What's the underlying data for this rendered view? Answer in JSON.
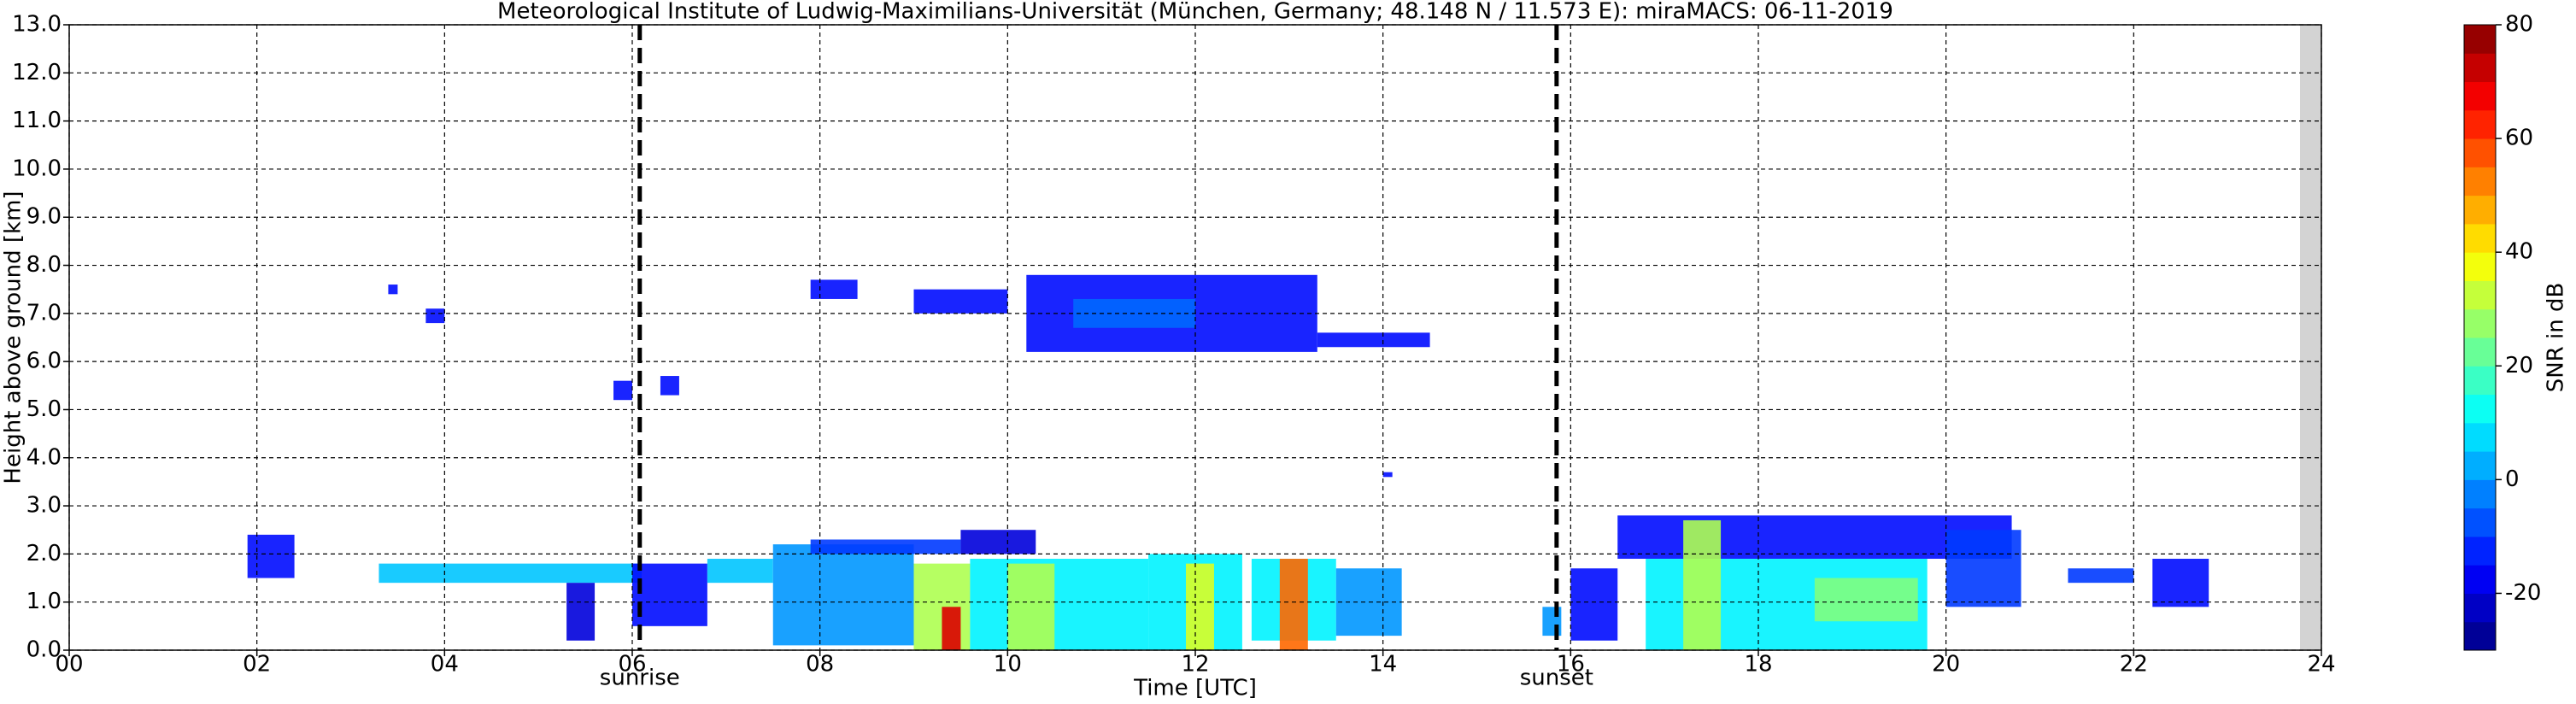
{
  "chart_data": {
    "type": "time-height",
    "title": "Meteorological Institute of Ludwig-Maximilians-Universität (München, Germany; 48.148 N / 11.573 E):    miraMACS: 06-11-2019",
    "x_label": "Time [UTC]",
    "y_label": "Height above ground [km]",
    "colorbar_label": "SNR in dB",
    "xlim": [
      0,
      24
    ],
    "xticks": [
      {
        "value": 0,
        "label": "00"
      },
      {
        "value": 2,
        "label": "02"
      },
      {
        "value": 4,
        "label": "04"
      },
      {
        "value": 6,
        "label": "06"
      },
      {
        "value": 8,
        "label": "08"
      },
      {
        "value": 10,
        "label": "10"
      },
      {
        "value": 12,
        "label": "12"
      },
      {
        "value": 14,
        "label": "14"
      },
      {
        "value": 16,
        "label": "16"
      },
      {
        "value": 18,
        "label": "18"
      },
      {
        "value": 20,
        "label": "20"
      },
      {
        "value": 22,
        "label": "22"
      },
      {
        "value": 24,
        "label": "24"
      }
    ],
    "ylim": [
      0,
      13
    ],
    "yticks": [
      {
        "value": 0,
        "label": "0.0"
      },
      {
        "value": 1,
        "label": "1.0"
      },
      {
        "value": 2,
        "label": "2.0"
      },
      {
        "value": 3,
        "label": "3.0"
      },
      {
        "value": 4,
        "label": "4.0"
      },
      {
        "value": 5,
        "label": "5.0"
      },
      {
        "value": 6,
        "label": "6.0"
      },
      {
        "value": 7,
        "label": "7.0"
      },
      {
        "value": 8,
        "label": "8.0"
      },
      {
        "value": 9,
        "label": "9.0"
      },
      {
        "value": 10,
        "label": "10.0"
      },
      {
        "value": 11,
        "label": "11.0"
      },
      {
        "value": 12,
        "label": "12.0"
      },
      {
        "value": 13,
        "label": "13.0"
      }
    ],
    "grid": true,
    "colormap": "jet",
    "clim": [
      -30,
      80
    ],
    "cticks": [
      -20,
      0,
      20,
      40,
      60,
      80
    ],
    "events": [
      {
        "label": "sunrise",
        "time": 6.08
      },
      {
        "label": "sunset",
        "time": 15.85
      }
    ],
    "echoes": [
      {
        "x": [
          1.9,
          2.4
        ],
        "y": [
          1.5,
          2.4
        ],
        "snr": -15
      },
      {
        "x": [
          3.4,
          3.5
        ],
        "y": [
          7.4,
          7.6
        ],
        "snr": -15
      },
      {
        "x": [
          3.8,
          4.0
        ],
        "y": [
          6.8,
          7.1
        ],
        "snr": -15
      },
      {
        "x": [
          5.8,
          6.0
        ],
        "y": [
          5.2,
          5.6
        ],
        "snr": -15
      },
      {
        "x": [
          6.3,
          6.5
        ],
        "y": [
          5.3,
          5.7
        ],
        "snr": -15
      },
      {
        "x": [
          3.3,
          6.1
        ],
        "y": [
          1.4,
          1.8
        ],
        "snr": 5
      },
      {
        "x": [
          5.3,
          5.6
        ],
        "y": [
          0.2,
          1.4
        ],
        "snr": -20
      },
      {
        "x": [
          6.0,
          6.8
        ],
        "y": [
          0.5,
          1.8
        ],
        "snr": -15
      },
      {
        "x": [
          6.8,
          7.5
        ],
        "y": [
          1.4,
          1.9
        ],
        "snr": 5
      },
      {
        "x": [
          7.5,
          9.0
        ],
        "y": [
          0.1,
          2.2
        ],
        "snr": 0
      },
      {
        "x": [
          9.0,
          9.6
        ],
        "y": [
          0.0,
          1.8
        ],
        "snr": 30
      },
      {
        "x": [
          9.3,
          9.5
        ],
        "y": [
          0.0,
          0.9
        ],
        "snr": 70
      },
      {
        "x": [
          9.6,
          11.5
        ],
        "y": [
          0.0,
          1.9
        ],
        "snr": 10
      },
      {
        "x": [
          10.0,
          10.5
        ],
        "y": [
          0.0,
          1.8
        ],
        "snr": 30
      },
      {
        "x": [
          11.5,
          12.5
        ],
        "y": [
          0.0,
          2.0
        ],
        "snr": 10
      },
      {
        "x": [
          11.9,
          12.2
        ],
        "y": [
          0.0,
          1.8
        ],
        "snr": 35
      },
      {
        "x": [
          12.6,
          13.5
        ],
        "y": [
          0.2,
          1.9
        ],
        "snr": 10
      },
      {
        "x": [
          12.9,
          13.2
        ],
        "y": [
          0.0,
          1.9
        ],
        "snr": 55
      },
      {
        "x": [
          13.5,
          14.2
        ],
        "y": [
          0.3,
          1.7
        ],
        "snr": 0
      },
      {
        "x": [
          7.9,
          9.5
        ],
        "y": [
          2.0,
          2.3
        ],
        "snr": -10
      },
      {
        "x": [
          9.5,
          10.3
        ],
        "y": [
          2.0,
          2.5
        ],
        "snr": -20
      },
      {
        "x": [
          7.9,
          8.4
        ],
        "y": [
          7.3,
          7.7
        ],
        "snr": -15
      },
      {
        "x": [
          9.0,
          10.0
        ],
        "y": [
          7.0,
          7.5
        ],
        "snr": -15
      },
      {
        "x": [
          10.2,
          13.3
        ],
        "y": [
          6.2,
          7.8
        ],
        "snr": -15
      },
      {
        "x": [
          10.7,
          12.0
        ],
        "y": [
          6.7,
          7.3
        ],
        "snr": -5
      },
      {
        "x": [
          13.3,
          14.5
        ],
        "y": [
          6.3,
          6.6
        ],
        "snr": -15
      },
      {
        "x": [
          15.7,
          15.9
        ],
        "y": [
          0.3,
          0.9
        ],
        "snr": 0
      },
      {
        "x": [
          16.0,
          16.5
        ],
        "y": [
          0.2,
          1.7
        ],
        "snr": -15
      },
      {
        "x": [
          16.5,
          20.7
        ],
        "y": [
          1.9,
          2.8
        ],
        "snr": -15
      },
      {
        "x": [
          16.8,
          19.8
        ],
        "y": [
          0.0,
          1.9
        ],
        "snr": 10
      },
      {
        "x": [
          17.2,
          17.6
        ],
        "y": [
          0.0,
          2.7
        ],
        "snr": 30
      },
      {
        "x": [
          18.6,
          19.7
        ],
        "y": [
          0.6,
          1.5
        ],
        "snr": 25
      },
      {
        "x": [
          20.0,
          20.8
        ],
        "y": [
          0.9,
          2.5
        ],
        "snr": -10
      },
      {
        "x": [
          21.3,
          22.0
        ],
        "y": [
          1.4,
          1.7
        ],
        "snr": -10
      },
      {
        "x": [
          22.2,
          22.8
        ],
        "y": [
          0.9,
          1.9
        ],
        "snr": -15
      },
      {
        "x": [
          14.0,
          14.1
        ],
        "y": [
          3.6,
          3.7
        ],
        "snr": -15
      }
    ]
  }
}
